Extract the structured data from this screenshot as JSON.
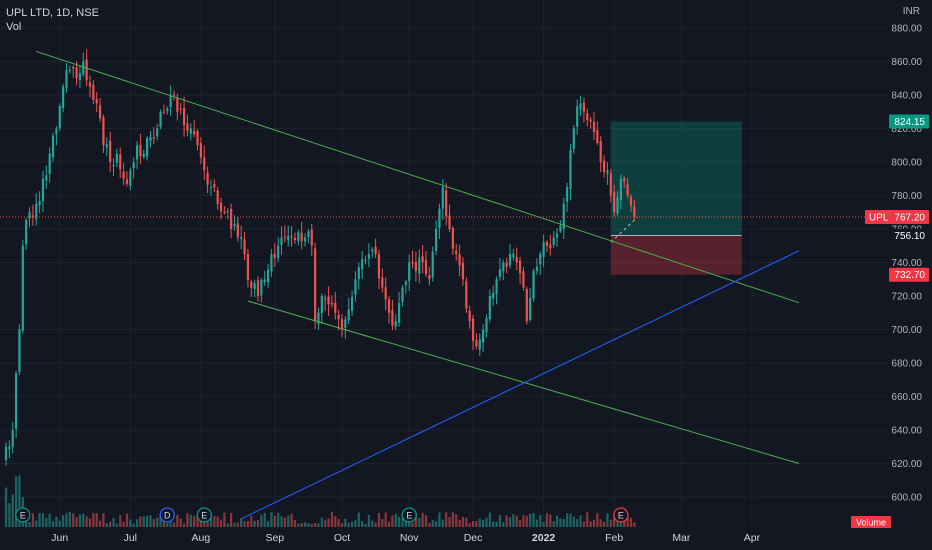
{
  "header": {
    "symbol_line": "UPL LTD, 1D, NSE",
    "volume_label": "Vol",
    "currency": "INR"
  },
  "chart_data": {
    "type": "candlestick",
    "title": "UPL LTD, 1D, NSE",
    "y_axis": {
      "range": [
        590,
        885
      ],
      "ticks": [
        "880.00",
        "860.00",
        "840.00",
        "820.00",
        "800.00",
        "780.00",
        "760.00",
        "740.00",
        "720.00",
        "700.00",
        "680.00",
        "660.00",
        "640.00",
        "620.00",
        "600.00"
      ],
      "tick_values": [
        880,
        860,
        840,
        820,
        800,
        780,
        760,
        740,
        720,
        700,
        680,
        660,
        640,
        620,
        600
      ]
    },
    "x_axis": {
      "ticks": [
        {
          "label": "Jun",
          "index": 16,
          "bold": false
        },
        {
          "label": "Jul",
          "index": 37,
          "bold": false
        },
        {
          "label": "Aug",
          "index": 58,
          "bold": false
        },
        {
          "label": "Sep",
          "index": 80,
          "bold": false
        },
        {
          "label": "Oct",
          "index": 100,
          "bold": false
        },
        {
          "label": "Nov",
          "index": 120,
          "bold": false
        },
        {
          "label": "Dec",
          "index": 139,
          "bold": false
        },
        {
          "label": "2022",
          "index": 160,
          "bold": true
        },
        {
          "label": "Feb",
          "index": 181,
          "bold": false
        },
        {
          "label": "Mar",
          "index": 201,
          "bold": false
        },
        {
          "label": "Apr",
          "index": 222,
          "bold": false
        }
      ],
      "bar_count_total": 236
    },
    "price_path": [
      [
        0,
        630
      ],
      [
        2,
        640
      ],
      [
        4,
        700
      ],
      [
        5,
        750
      ],
      [
        7,
        770
      ],
      [
        9,
        775
      ],
      [
        11,
        790
      ],
      [
        13,
        805
      ],
      [
        15,
        820
      ],
      [
        17,
        845
      ],
      [
        19,
        855
      ],
      [
        21,
        850
      ],
      [
        23,
        860
      ],
      [
        25,
        845
      ],
      [
        27,
        835
      ],
      [
        29,
        810
      ],
      [
        31,
        800
      ],
      [
        33,
        805
      ],
      [
        35,
        790
      ],
      [
        37,
        795
      ],
      [
        39,
        810
      ],
      [
        41,
        805
      ],
      [
        43,
        815
      ],
      [
        45,
        820
      ],
      [
        47,
        830
      ],
      [
        49,
        840
      ],
      [
        51,
        830
      ],
      [
        53,
        822
      ],
      [
        55,
        820
      ],
      [
        57,
        810
      ],
      [
        59,
        795
      ],
      [
        61,
        785
      ],
      [
        63,
        775
      ],
      [
        65,
        770
      ],
      [
        67,
        760
      ],
      [
        69,
        755
      ],
      [
        71,
        745
      ],
      [
        73,
        725
      ],
      [
        75,
        720
      ],
      [
        77,
        730
      ],
      [
        79,
        745
      ],
      [
        81,
        750
      ],
      [
        83,
        755
      ],
      [
        85,
        755
      ],
      [
        87,
        758
      ],
      [
        89,
        755
      ],
      [
        91,
        750
      ],
      [
        92,
        705
      ],
      [
        94,
        720
      ],
      [
        96,
        715
      ],
      [
        98,
        710
      ],
      [
        100,
        700
      ],
      [
        102,
        712
      ],
      [
        104,
        730
      ],
      [
        106,
        742
      ],
      [
        108,
        745
      ],
      [
        110,
        745
      ],
      [
        112,
        725
      ],
      [
        114,
        710
      ],
      [
        116,
        705
      ],
      [
        118,
        725
      ],
      [
        120,
        740
      ],
      [
        122,
        735
      ],
      [
        124,
        740
      ],
      [
        126,
        730
      ],
      [
        128,
        760
      ],
      [
        130,
        785
      ],
      [
        132,
        760
      ],
      [
        134,
        745
      ],
      [
        136,
        730
      ],
      [
        138,
        705
      ],
      [
        140,
        690
      ],
      [
        142,
        700
      ],
      [
        144,
        720
      ],
      [
        146,
        730
      ],
      [
        148,
        740
      ],
      [
        150,
        745
      ],
      [
        152,
        740
      ],
      [
        154,
        725
      ],
      [
        155,
        705
      ],
      [
        157,
        735
      ],
      [
        159,
        745
      ],
      [
        161,
        750
      ],
      [
        163,
        755
      ],
      [
        165,
        762
      ],
      [
        167,
        785
      ],
      [
        169,
        820
      ],
      [
        171,
        835
      ],
      [
        173,
        825
      ],
      [
        175,
        818
      ],
      [
        177,
        800
      ],
      [
        179,
        795
      ],
      [
        181,
        770
      ],
      [
        183,
        790
      ],
      [
        185,
        780
      ],
      [
        187,
        767
      ]
    ],
    "last_bar_index": 187,
    "price_labels": [
      {
        "label": "824.15",
        "value": 824.15,
        "color": "#089981"
      },
      {
        "label": "UPL",
        "value": 767.2,
        "price": "767.20",
        "color": "#f23645"
      },
      {
        "label": "756.10",
        "value": 756.1,
        "color": "#131722"
      },
      {
        "label": "732.70",
        "value": 732.7,
        "color": "#f23645"
      }
    ],
    "last_price": 767.2,
    "position_tool": {
      "entry": 756.1,
      "target": 824.15,
      "stop": 732.7,
      "start_index": 180,
      "end_index": 219
    },
    "trend_lines": [
      {
        "name": "upper-channel-line",
        "color": "#4caf50",
        "points": [
          [
            9,
            866
          ],
          [
            236,
            716
          ]
        ]
      },
      {
        "name": "lower-channel-line",
        "color": "#4caf50",
        "points": [
          [
            72,
            717
          ],
          [
            236,
            620
          ]
        ]
      },
      {
        "name": "support-line",
        "color": "#2962ff",
        "points": [
          [
            70,
            587
          ],
          [
            236,
            747
          ]
        ]
      }
    ],
    "event_markers": [
      {
        "label": "E",
        "index": 5,
        "type": "earnings"
      },
      {
        "label": "D",
        "index": 48,
        "type": "dividend"
      },
      {
        "label": "E",
        "index": 59,
        "type": "earnings"
      },
      {
        "label": "E",
        "index": 120,
        "type": "earnings"
      },
      {
        "label": "E",
        "index": 183,
        "type": "earnings"
      }
    ],
    "volume_badge": "Volume",
    "colors": {
      "up": "#26a69a",
      "down": "#ef5350",
      "background": "#131722",
      "grid": "#1e222d",
      "target_zone": "rgba(8,153,129,0.30)",
      "stop_zone": "rgba(242,54,69,0.30)"
    }
  }
}
